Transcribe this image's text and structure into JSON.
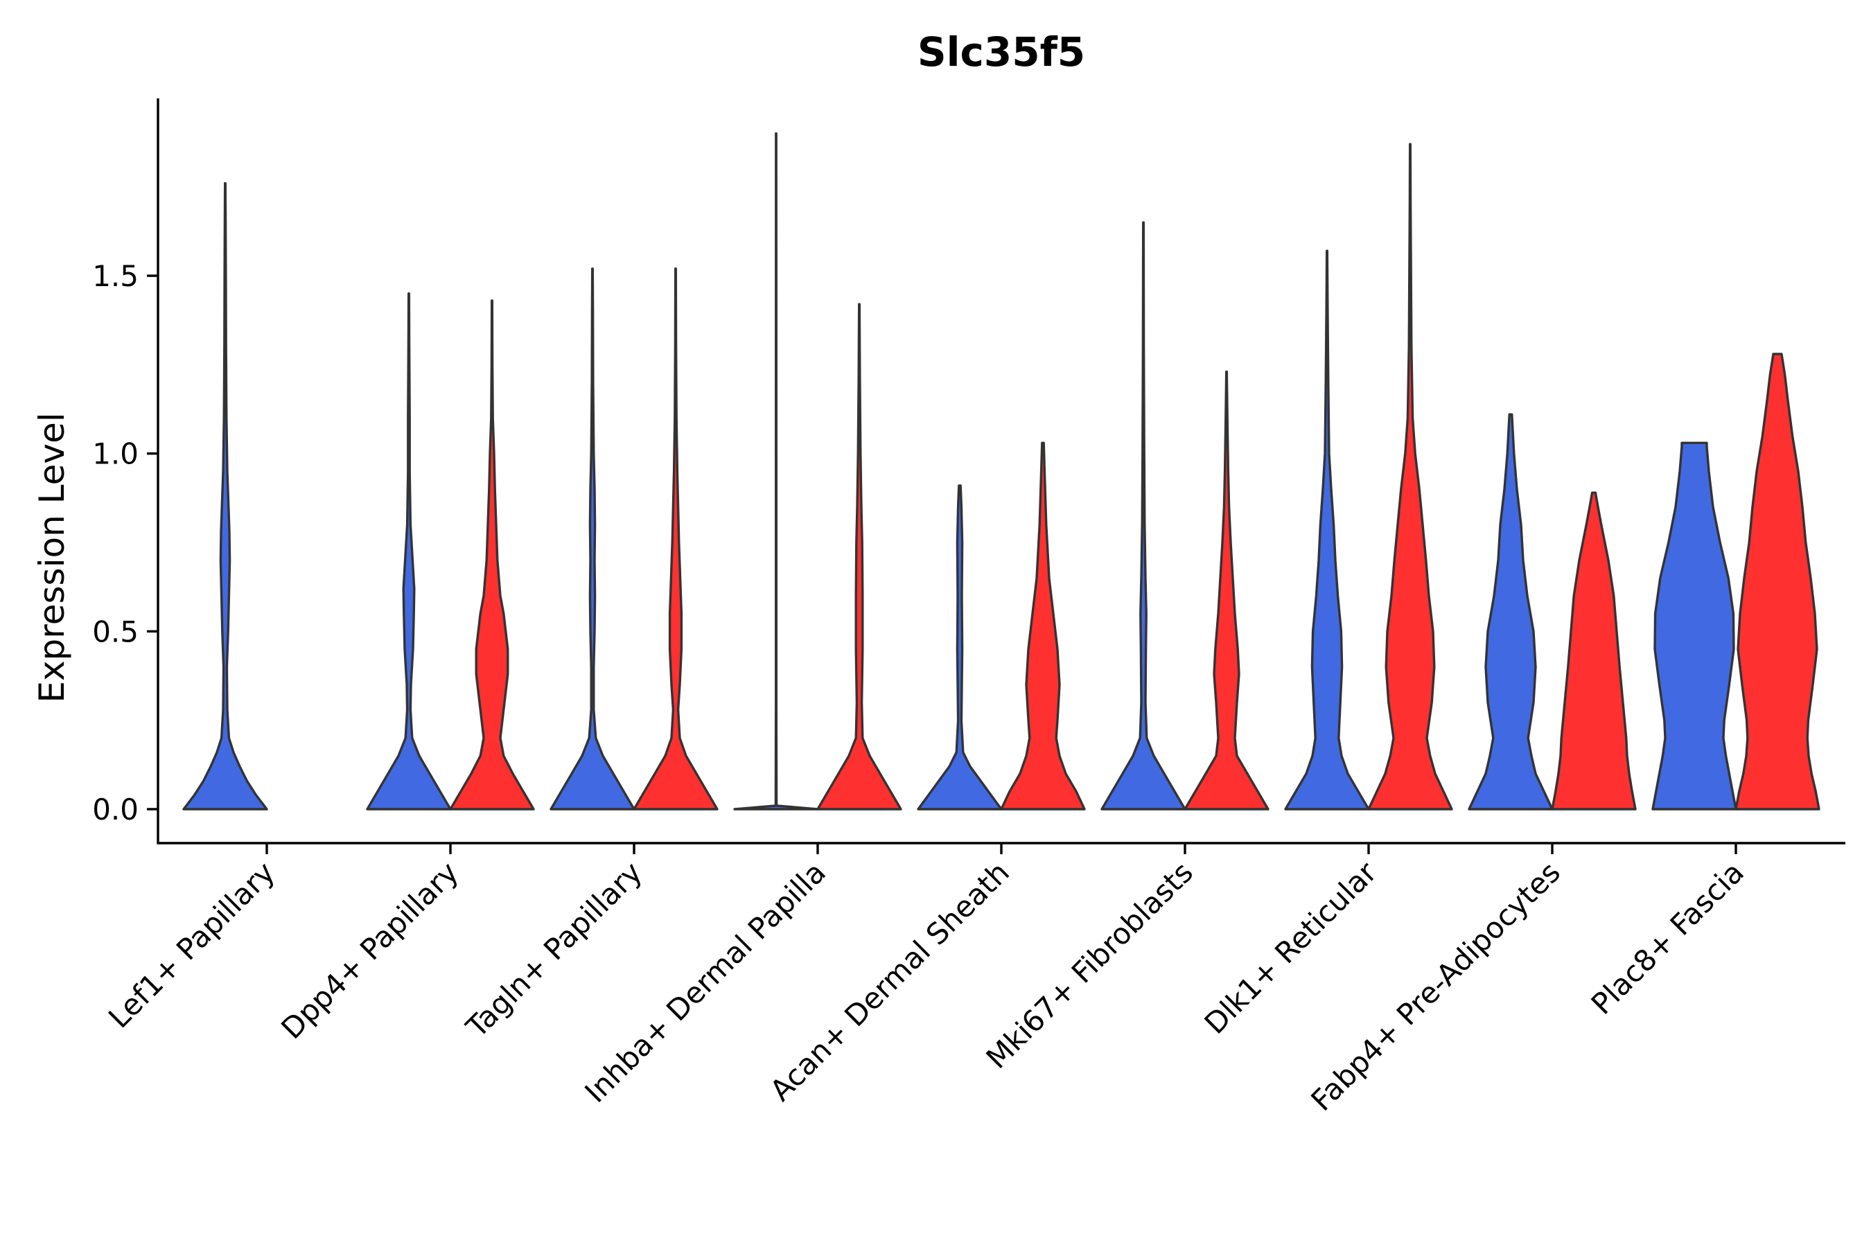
{
  "chart_data": {
    "type": "violin",
    "title": "Slc35f5",
    "xlabel": "",
    "ylabel": "Expression Level",
    "ylim": [
      -0.1,
      2.0
    ],
    "yticks": [
      0.0,
      0.5,
      1.0,
      1.5
    ],
    "ytick_labels": [
      "0.0",
      "0.5",
      "1.0",
      "1.5"
    ],
    "legend": "none",
    "series_colors": [
      "#4169E1",
      "#FF3030"
    ],
    "categories": [
      "Lef1+ Papillary",
      "Dpp4+ Papillary",
      "Tagln+ Papillary",
      "Inhba+ Dermal Papilla",
      "Acan+ Dermal Sheath",
      "Mki67+ Fibroblasts",
      "Dlk1+ Reticular",
      "Fabp4+ Pre-Adipocytes",
      "Plac8+ Fascia"
    ],
    "violins": [
      {
        "category": "Lef1+ Papillary",
        "group": "blue",
        "max": 1.76,
        "profile": [
          [
            0,
            1
          ],
          [
            0.04,
            0.74
          ],
          [
            0.08,
            0.52
          ],
          [
            0.12,
            0.35
          ],
          [
            0.16,
            0.2
          ],
          [
            0.2,
            0.09
          ],
          [
            0.28,
            0.05
          ],
          [
            0.4,
            0.04
          ],
          [
            0.5,
            0.07
          ],
          [
            0.6,
            0.09
          ],
          [
            0.7,
            0.11
          ],
          [
            0.78,
            0.1
          ],
          [
            0.85,
            0.08
          ],
          [
            0.95,
            0.05
          ],
          [
            1.1,
            0.03
          ],
          [
            1.3,
            0.02
          ],
          [
            1.5,
            0.015
          ],
          [
            1.65,
            0.01
          ],
          [
            1.76,
            0.005
          ]
        ]
      },
      {
        "category": "Dpp4+ Papillary",
        "group": "blue",
        "max": 1.45,
        "profile": [
          [
            0,
            1
          ],
          [
            0.05,
            0.75
          ],
          [
            0.1,
            0.5
          ],
          [
            0.15,
            0.25
          ],
          [
            0.2,
            0.08
          ],
          [
            0.28,
            0.04
          ],
          [
            0.35,
            0.05
          ],
          [
            0.45,
            0.1
          ],
          [
            0.55,
            0.12
          ],
          [
            0.62,
            0.13
          ],
          [
            0.7,
            0.09
          ],
          [
            0.8,
            0.04
          ],
          [
            0.95,
            0.02
          ],
          [
            1.1,
            0.02
          ],
          [
            1.3,
            0.01
          ],
          [
            1.45,
            0.005
          ]
        ]
      },
      {
        "category": "Dpp4+ Papillary",
        "group": "red",
        "max": 1.43,
        "profile": [
          [
            0,
            1
          ],
          [
            0.05,
            0.75
          ],
          [
            0.1,
            0.5
          ],
          [
            0.15,
            0.28
          ],
          [
            0.2,
            0.2
          ],
          [
            0.3,
            0.3
          ],
          [
            0.38,
            0.38
          ],
          [
            0.45,
            0.38
          ],
          [
            0.55,
            0.28
          ],
          [
            0.6,
            0.2
          ],
          [
            0.7,
            0.13
          ],
          [
            0.8,
            0.1
          ],
          [
            0.9,
            0.07
          ],
          [
            1.0,
            0.05
          ],
          [
            1.1,
            0.02
          ],
          [
            1.25,
            0.01
          ],
          [
            1.43,
            0.005
          ]
        ]
      },
      {
        "category": "Tagln+ Papillary",
        "group": "blue",
        "max": 1.52,
        "profile": [
          [
            0,
            1
          ],
          [
            0.05,
            0.75
          ],
          [
            0.1,
            0.5
          ],
          [
            0.15,
            0.25
          ],
          [
            0.2,
            0.08
          ],
          [
            0.28,
            0.03
          ],
          [
            0.4,
            0.03
          ],
          [
            0.5,
            0.05
          ],
          [
            0.6,
            0.06
          ],
          [
            0.7,
            0.05
          ],
          [
            0.8,
            0.06
          ],
          [
            0.9,
            0.05
          ],
          [
            1.0,
            0.03
          ],
          [
            1.2,
            0.015
          ],
          [
            1.4,
            0.01
          ],
          [
            1.52,
            0.005
          ]
        ]
      },
      {
        "category": "Tagln+ Papillary",
        "group": "red",
        "max": 1.52,
        "profile": [
          [
            0,
            1
          ],
          [
            0.05,
            0.75
          ],
          [
            0.1,
            0.5
          ],
          [
            0.15,
            0.25
          ],
          [
            0.2,
            0.1
          ],
          [
            0.28,
            0.06
          ],
          [
            0.35,
            0.1
          ],
          [
            0.45,
            0.14
          ],
          [
            0.55,
            0.14
          ],
          [
            0.65,
            0.11
          ],
          [
            0.75,
            0.08
          ],
          [
            0.85,
            0.06
          ],
          [
            0.95,
            0.04
          ],
          [
            1.1,
            0.02
          ],
          [
            1.3,
            0.01
          ],
          [
            1.52,
            0.005
          ]
        ]
      },
      {
        "category": "Inhba+ Dermal Papilla",
        "group": "blue",
        "max": 1.9,
        "profile": [
          [
            0,
            1
          ],
          [
            0.005,
            0.5
          ],
          [
            0.01,
            0.01
          ],
          [
            0.3,
            0.005
          ],
          [
            1.0,
            0.005
          ],
          [
            1.9,
            0.003
          ]
        ]
      },
      {
        "category": "Inhba+ Dermal Papilla",
        "group": "red",
        "max": 1.42,
        "profile": [
          [
            0,
            1
          ],
          [
            0.05,
            0.75
          ],
          [
            0.1,
            0.5
          ],
          [
            0.15,
            0.25
          ],
          [
            0.2,
            0.08
          ],
          [
            0.3,
            0.06
          ],
          [
            0.45,
            0.08
          ],
          [
            0.6,
            0.08
          ],
          [
            0.75,
            0.07
          ],
          [
            0.85,
            0.05
          ],
          [
            1.0,
            0.03
          ],
          [
            1.2,
            0.015
          ],
          [
            1.42,
            0.005
          ]
        ]
      },
      {
        "category": "Acan+ Dermal Sheath",
        "group": "blue",
        "max": 0.91,
        "profile": [
          [
            0,
            1
          ],
          [
            0.04,
            0.75
          ],
          [
            0.08,
            0.5
          ],
          [
            0.12,
            0.25
          ],
          [
            0.16,
            0.08
          ],
          [
            0.25,
            0.04
          ],
          [
            0.35,
            0.05
          ],
          [
            0.45,
            0.06
          ],
          [
            0.6,
            0.05
          ],
          [
            0.75,
            0.06
          ],
          [
            0.85,
            0.04
          ],
          [
            0.91,
            0.02
          ]
        ]
      },
      {
        "category": "Acan+ Dermal Sheath",
        "group": "red",
        "max": 1.03,
        "profile": [
          [
            0,
            1
          ],
          [
            0.05,
            0.8
          ],
          [
            0.1,
            0.55
          ],
          [
            0.15,
            0.4
          ],
          [
            0.2,
            0.32
          ],
          [
            0.25,
            0.35
          ],
          [
            0.35,
            0.4
          ],
          [
            0.45,
            0.35
          ],
          [
            0.55,
            0.25
          ],
          [
            0.65,
            0.15
          ],
          [
            0.8,
            0.08
          ],
          [
            0.95,
            0.04
          ],
          [
            1.03,
            0.02
          ]
        ]
      },
      {
        "category": "Mki67+ Fibroblasts",
        "group": "blue",
        "max": 1.65,
        "profile": [
          [
            0,
            1
          ],
          [
            0.05,
            0.75
          ],
          [
            0.1,
            0.5
          ],
          [
            0.15,
            0.25
          ],
          [
            0.2,
            0.08
          ],
          [
            0.3,
            0.05
          ],
          [
            0.45,
            0.06
          ],
          [
            0.55,
            0.07
          ],
          [
            0.65,
            0.05
          ],
          [
            0.8,
            0.03
          ],
          [
            1.0,
            0.02
          ],
          [
            1.3,
            0.01
          ],
          [
            1.65,
            0.005
          ]
        ]
      },
      {
        "category": "Mki67+ Fibroblasts",
        "group": "red",
        "max": 1.23,
        "profile": [
          [
            0,
            1
          ],
          [
            0.05,
            0.75
          ],
          [
            0.1,
            0.5
          ],
          [
            0.15,
            0.25
          ],
          [
            0.2,
            0.2
          ],
          [
            0.3,
            0.25
          ],
          [
            0.38,
            0.3
          ],
          [
            0.45,
            0.27
          ],
          [
            0.55,
            0.2
          ],
          [
            0.65,
            0.15
          ],
          [
            0.75,
            0.1
          ],
          [
            0.85,
            0.06
          ],
          [
            0.95,
            0.04
          ],
          [
            1.1,
            0.02
          ],
          [
            1.23,
            0.005
          ]
        ]
      },
      {
        "category": "Dlk1+ Reticular",
        "group": "blue",
        "max": 1.57,
        "profile": [
          [
            0,
            1
          ],
          [
            0.05,
            0.75
          ],
          [
            0.1,
            0.5
          ],
          [
            0.15,
            0.35
          ],
          [
            0.2,
            0.28
          ],
          [
            0.3,
            0.32
          ],
          [
            0.4,
            0.36
          ],
          [
            0.5,
            0.34
          ],
          [
            0.6,
            0.26
          ],
          [
            0.7,
            0.2
          ],
          [
            0.8,
            0.16
          ],
          [
            0.9,
            0.1
          ],
          [
            1.0,
            0.05
          ],
          [
            1.2,
            0.03
          ],
          [
            1.4,
            0.015
          ],
          [
            1.57,
            0.005
          ]
        ]
      },
      {
        "category": "Dlk1+ Reticular",
        "group": "red",
        "max": 1.87,
        "profile": [
          [
            0,
            1
          ],
          [
            0.05,
            0.8
          ],
          [
            0.1,
            0.6
          ],
          [
            0.15,
            0.48
          ],
          [
            0.2,
            0.4
          ],
          [
            0.3,
            0.52
          ],
          [
            0.4,
            0.58
          ],
          [
            0.5,
            0.55
          ],
          [
            0.6,
            0.45
          ],
          [
            0.7,
            0.38
          ],
          [
            0.8,
            0.3
          ],
          [
            0.9,
            0.22
          ],
          [
            1.0,
            0.12
          ],
          [
            1.1,
            0.06
          ],
          [
            1.3,
            0.03
          ],
          [
            1.5,
            0.02
          ],
          [
            1.7,
            0.01
          ],
          [
            1.87,
            0.005
          ]
        ]
      },
      {
        "category": "Fabp4+ Pre-Adipocytes",
        "group": "blue",
        "max": 1.11,
        "profile": [
          [
            0,
            1
          ],
          [
            0.05,
            0.8
          ],
          [
            0.1,
            0.6
          ],
          [
            0.15,
            0.5
          ],
          [
            0.2,
            0.42
          ],
          [
            0.3,
            0.55
          ],
          [
            0.4,
            0.6
          ],
          [
            0.5,
            0.55
          ],
          [
            0.6,
            0.4
          ],
          [
            0.7,
            0.3
          ],
          [
            0.8,
            0.25
          ],
          [
            0.9,
            0.15
          ],
          [
            1.0,
            0.08
          ],
          [
            1.11,
            0.03
          ]
        ]
      },
      {
        "category": "Fabp4+ Pre-Adipocytes",
        "group": "red",
        "max": 0.89,
        "profile": [
          [
            0,
            1
          ],
          [
            0.05,
            0.92
          ],
          [
            0.1,
            0.85
          ],
          [
            0.15,
            0.8
          ],
          [
            0.2,
            0.78
          ],
          [
            0.3,
            0.7
          ],
          [
            0.4,
            0.62
          ],
          [
            0.5,
            0.55
          ],
          [
            0.6,
            0.48
          ],
          [
            0.7,
            0.35
          ],
          [
            0.8,
            0.18
          ],
          [
            0.85,
            0.1
          ],
          [
            0.89,
            0.04
          ]
        ]
      },
      {
        "category": "Plac8+ Fascia",
        "group": "blue",
        "max": 1.03,
        "profile": [
          [
            0,
            1
          ],
          [
            0.05,
            0.92
          ],
          [
            0.1,
            0.84
          ],
          [
            0.15,
            0.76
          ],
          [
            0.2,
            0.7
          ],
          [
            0.25,
            0.72
          ],
          [
            0.35,
            0.84
          ],
          [
            0.45,
            0.95
          ],
          [
            0.55,
            0.94
          ],
          [
            0.65,
            0.82
          ],
          [
            0.75,
            0.62
          ],
          [
            0.85,
            0.45
          ],
          [
            0.95,
            0.35
          ],
          [
            1.02,
            0.3
          ],
          [
            1.03,
            0.3
          ]
        ]
      },
      {
        "category": "Plac8+ Fascia",
        "group": "red",
        "max": 1.28,
        "profile": [
          [
            0,
            1
          ],
          [
            0.05,
            0.92
          ],
          [
            0.1,
            0.82
          ],
          [
            0.15,
            0.75
          ],
          [
            0.2,
            0.72
          ],
          [
            0.25,
            0.74
          ],
          [
            0.35,
            0.85
          ],
          [
            0.45,
            0.95
          ],
          [
            0.55,
            0.9
          ],
          [
            0.65,
            0.8
          ],
          [
            0.75,
            0.68
          ],
          [
            0.85,
            0.6
          ],
          [
            0.95,
            0.5
          ],
          [
            1.05,
            0.36
          ],
          [
            1.15,
            0.25
          ],
          [
            1.22,
            0.18
          ],
          [
            1.28,
            0.1
          ]
        ]
      }
    ]
  }
}
